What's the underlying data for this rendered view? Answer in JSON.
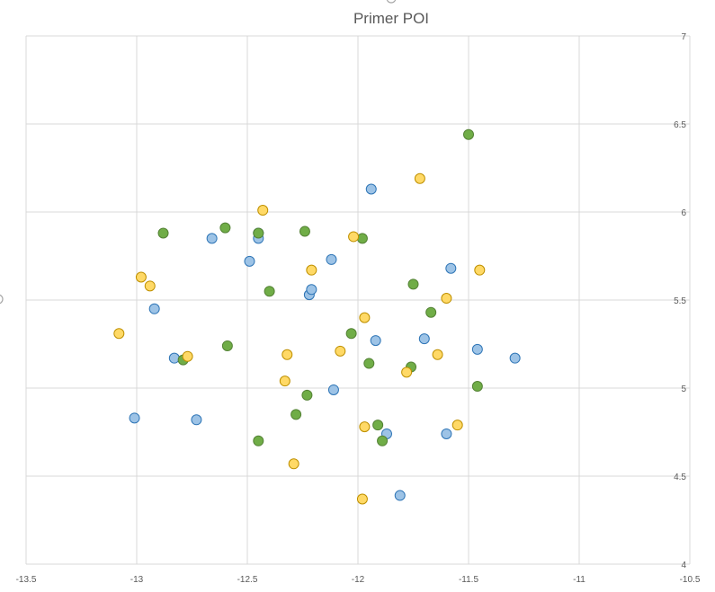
{
  "chart_data": {
    "type": "scatter",
    "title": "Primer POI",
    "xlabel": "",
    "ylabel": "",
    "xlim": [
      -13.5,
      -10.5
    ],
    "ylim": [
      4,
      7
    ],
    "x_ticks": [
      -13.5,
      -13,
      -12.5,
      -12,
      -11.5,
      -11,
      -10.5
    ],
    "y_ticks": [
      4,
      4.5,
      5,
      5.5,
      6,
      6.5,
      7
    ],
    "x_tick_labels": [
      "-13.5",
      "-13",
      "-12.5",
      "-12",
      "-11.5",
      "-11",
      "-10.5"
    ],
    "y_tick_labels": [
      "4",
      "4.5",
      "5",
      "5.5",
      "6",
      "6.5",
      "7"
    ],
    "grid": true,
    "legend": "none",
    "series": [
      {
        "color": "#9dc3e6",
        "edge": "#2e75b6",
        "points": [
          [
            -12.66,
            5.85
          ],
          [
            -12.45,
            5.88
          ],
          [
            -12.45,
            5.85
          ],
          [
            -12.49,
            5.72
          ],
          [
            -12.92,
            5.45
          ],
          [
            -12.83,
            5.17
          ],
          [
            -13.01,
            4.83
          ],
          [
            -12.73,
            4.82
          ],
          [
            -12.22,
            5.53
          ],
          [
            -12.21,
            5.56
          ],
          [
            -12.12,
            5.73
          ],
          [
            -11.94,
            6.13
          ],
          [
            -12.11,
            4.99
          ],
          [
            -11.92,
            5.27
          ],
          [
            -11.7,
            5.28
          ],
          [
            -11.87,
            4.74
          ],
          [
            -11.81,
            4.39
          ],
          [
            -11.58,
            5.68
          ],
          [
            -11.6,
            4.74
          ],
          [
            -11.46,
            5.22
          ],
          [
            -11.29,
            5.17
          ]
        ]
      },
      {
        "color": "#70ad47",
        "edge": "#548235",
        "points": [
          [
            -12.88,
            5.88
          ],
          [
            -12.6,
            5.91
          ],
          [
            -12.45,
            5.88
          ],
          [
            -12.24,
            5.89
          ],
          [
            -12.4,
            5.55
          ],
          [
            -12.59,
            5.24
          ],
          [
            -12.79,
            5.16
          ],
          [
            -12.23,
            4.96
          ],
          [
            -12.28,
            4.85
          ],
          [
            -12.45,
            4.7
          ],
          [
            -11.98,
            5.85
          ],
          [
            -12.03,
            5.31
          ],
          [
            -11.95,
            5.14
          ],
          [
            -11.91,
            4.79
          ],
          [
            -11.89,
            4.7
          ],
          [
            -11.75,
            5.59
          ],
          [
            -11.76,
            5.12
          ],
          [
            -11.67,
            5.43
          ],
          [
            -11.5,
            6.44
          ],
          [
            -11.46,
            5.01
          ]
        ]
      },
      {
        "color": "#ffd966",
        "edge": "#bf9000",
        "points": [
          [
            -13.08,
            5.31
          ],
          [
            -12.98,
            5.63
          ],
          [
            -12.94,
            5.58
          ],
          [
            -12.77,
            5.18
          ],
          [
            -12.43,
            6.01
          ],
          [
            -12.32,
            5.19
          ],
          [
            -12.33,
            5.04
          ],
          [
            -12.29,
            4.57
          ],
          [
            -12.21,
            5.67
          ],
          [
            -12.08,
            5.21
          ],
          [
            -12.02,
            5.86
          ],
          [
            -11.97,
            5.4
          ],
          [
            -11.97,
            4.78
          ],
          [
            -11.98,
            4.37
          ],
          [
            -11.78,
            5.09
          ],
          [
            -11.72,
            6.19
          ],
          [
            -11.64,
            5.19
          ],
          [
            -11.6,
            5.51
          ],
          [
            -11.55,
            4.79
          ],
          [
            -11.45,
            5.67
          ]
        ]
      }
    ]
  }
}
